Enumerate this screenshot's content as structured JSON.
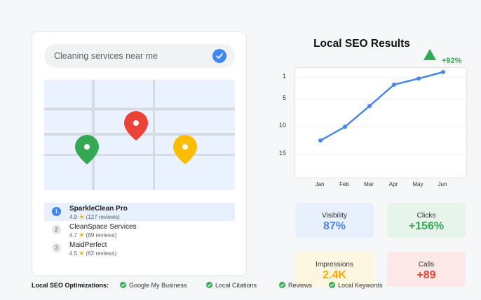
{
  "search": {
    "query": "Cleaning services near me"
  },
  "map": {
    "pins": [
      {
        "name": "red-pin",
        "color": "#ea4335"
      },
      {
        "name": "green-pin",
        "color": "#34a853"
      },
      {
        "name": "yellow-pin",
        "color": "#fbbc04"
      }
    ]
  },
  "results": [
    {
      "rank": "1",
      "name": "SparkleClean Pro",
      "rating": "4.9",
      "reviews": "(127 reviews)"
    },
    {
      "rank": "2",
      "name": "CleanSpace Services",
      "rating": "4.7",
      "reviews": "(89 reviews)"
    },
    {
      "rank": "3",
      "name": "MaidPerfect",
      "rating": "4.5",
      "reviews": "(62 reviews)"
    }
  ],
  "seo": {
    "title": "Local SEO Results",
    "trend": "+92%"
  },
  "chart_data": {
    "type": "line",
    "categories": [
      "Jan",
      "Feb",
      "Mar",
      "Apr",
      "May",
      "Jun"
    ],
    "series": [
      {
        "values": [
          12.5,
          10,
          6.2,
          2.3,
          1.2,
          0
        ]
      }
    ],
    "y_ticks": [
      "1",
      "5",
      "10",
      "15"
    ],
    "y_tick_values": [
      1,
      5,
      10,
      15
    ],
    "ylim": [
      0,
      18
    ],
    "y_inverted": true,
    "grid": true,
    "line_color": "#4a86e8"
  },
  "metrics": {
    "visibility": {
      "label": "Visibility",
      "value": "87%",
      "color": "#4a86e8",
      "bg": "#e8f0fe"
    },
    "clicks": {
      "label": "Clicks",
      "value": "+156%",
      "color": "#34a853",
      "bg": "#e6f4ea"
    },
    "impressions": {
      "label": "Impressions",
      "value": "2.4K",
      "color": "#f9ab00",
      "bg": "#fef7e0"
    },
    "calls": {
      "label": "Calls",
      "value": "+89",
      "color": "#ea4335",
      "bg": "#fce8e6"
    }
  },
  "optimizations": {
    "title": "Local SEO Optimizations:",
    "items": [
      "Google My Business",
      "Local Citations",
      "Reviews",
      "Local Keywords"
    ]
  }
}
